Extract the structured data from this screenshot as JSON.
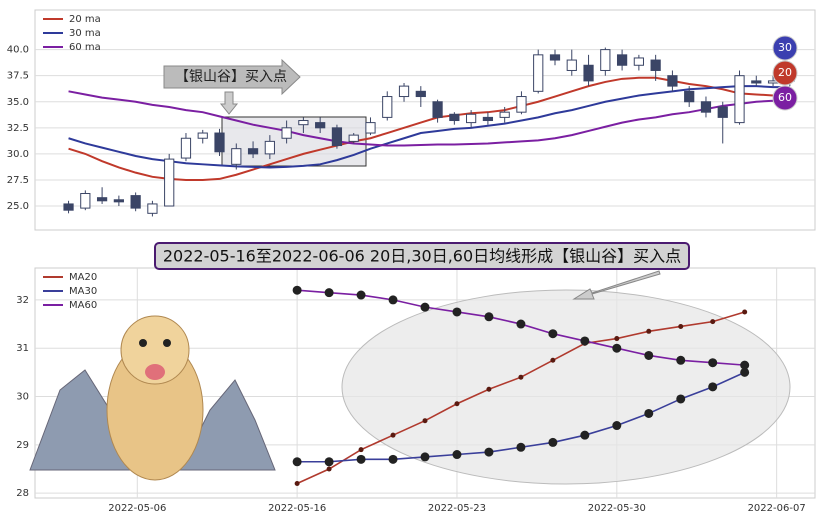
{
  "chart_data": [
    {
      "type": "candlestick",
      "ylim": [
        22.7,
        43.8
      ],
      "yticks": [
        {
          "value": 25,
          "label": "25.0"
        },
        {
          "value": 27.5,
          "label": "27.5"
        },
        {
          "value": 30,
          "label": "30.0"
        },
        {
          "value": 32.5,
          "label": "32.5"
        },
        {
          "value": 35,
          "label": "35.0"
        },
        {
          "value": 37.5,
          "label": "37.5"
        },
        {
          "value": 40,
          "label": "40.0"
        }
      ],
      "xlim": [
        -2,
        44.5
      ],
      "grid": true,
      "legend": "upper left",
      "up_color": "#ffffff",
      "down_color": "#3b4566",
      "candles": [
        [
          25.2,
          24.6,
          25.5,
          24.3
        ],
        [
          24.8,
          26.2,
          26.5,
          24.6
        ],
        [
          25.8,
          25.5,
          26.8,
          25.2
        ],
        [
          25.6,
          25.4,
          26,
          25
        ],
        [
          26,
          24.8,
          26.3,
          24.5
        ],
        [
          24.3,
          25.2,
          25.5,
          24
        ],
        [
          25,
          29.5,
          30,
          25
        ],
        [
          29.6,
          31.5,
          32,
          29.3
        ],
        [
          31.5,
          32,
          32.3,
          31
        ],
        [
          32,
          30.2,
          32.4,
          29.8
        ],
        [
          29,
          30.5,
          31,
          28.5
        ],
        [
          30.5,
          30,
          31.2,
          29.6
        ],
        [
          30,
          31.2,
          31.8,
          29.5
        ],
        [
          31.5,
          32.5,
          33.2,
          31
        ],
        [
          32.8,
          33.2,
          33.5,
          32
        ],
        [
          33,
          32.5,
          33.5,
          32
        ],
        [
          32.5,
          30.8,
          32.8,
          30.5
        ],
        [
          31.2,
          31.8,
          32,
          31
        ],
        [
          32,
          33,
          33.5,
          31.8
        ],
        [
          33.5,
          35.5,
          36,
          33.2
        ],
        [
          35.5,
          36.5,
          36.8,
          35
        ],
        [
          36,
          35.5,
          36.5,
          34.5
        ],
        [
          35,
          33.5,
          35.2,
          33
        ],
        [
          33.8,
          33.2,
          34,
          32.8
        ],
        [
          33,
          33.8,
          34.2,
          32.5
        ],
        [
          33.5,
          33.2,
          34,
          32.8
        ],
        [
          33.5,
          34,
          34.5,
          33
        ],
        [
          34,
          35.5,
          36,
          33.8
        ],
        [
          36,
          39.5,
          40,
          35.8
        ],
        [
          39.5,
          39,
          40,
          38.5
        ],
        [
          38,
          39,
          40,
          37.5
        ],
        [
          38.5,
          37,
          39.5,
          36.5
        ],
        [
          38,
          40,
          40.2,
          37.5
        ],
        [
          39.5,
          38.5,
          40,
          38
        ],
        [
          38.5,
          39.2,
          39.5,
          38
        ],
        [
          39,
          38,
          39.5,
          37
        ],
        [
          37.5,
          36.5,
          38,
          36
        ],
        [
          36,
          35,
          36.5,
          34.5
        ],
        [
          35,
          34,
          35.5,
          33.5
        ],
        [
          34.5,
          33.5,
          35,
          31
        ],
        [
          33,
          37.5,
          38,
          32.8
        ],
        [
          37,
          36.8,
          37.5,
          36.5
        ],
        [
          36.8,
          37,
          37.5,
          36.5
        ],
        [
          37,
          37.2,
          37.5,
          36.5
        ]
      ],
      "series": [
        {
          "name": "20 ma",
          "color": "#c0392b",
          "values": [
            30.5,
            30,
            29.3,
            28.7,
            28.2,
            27.8,
            27.6,
            27.5,
            27.5,
            27.6,
            28,
            28.5,
            29,
            29.5,
            30,
            30.4,
            30.8,
            31.2,
            31.5,
            32,
            32.5,
            33,
            33.5,
            33.7,
            33.9,
            34,
            34.2,
            34.6,
            35,
            35.5,
            36,
            36.5,
            36.9,
            37.2,
            37.3,
            37.3,
            37,
            36.7,
            36.5,
            36.2,
            35.8,
            35.7,
            35.6,
            35.6
          ]
        },
        {
          "name": "30 ma",
          "color": "#2e3a9a",
          "values": [
            31.5,
            31,
            30.6,
            30.2,
            29.8,
            29.5,
            29.3,
            29.1,
            29,
            28.9,
            28.8,
            28.75,
            28.7,
            28.75,
            28.85,
            29,
            29.4,
            29.9,
            30.5,
            31,
            31.5,
            32,
            32.2,
            32.4,
            32.5,
            32.7,
            32.9,
            33.2,
            33.5,
            33.9,
            34.2,
            34.6,
            35,
            35.3,
            35.6,
            35.8,
            36,
            36.2,
            36.3,
            36.4,
            36.5,
            36.5,
            36.4,
            36.4
          ]
        },
        {
          "name": "60 ma",
          "color": "#7b1fa2",
          "values": [
            36,
            35.7,
            35.4,
            35.2,
            35,
            34.7,
            34.5,
            34.2,
            34,
            33.6,
            33.2,
            32.8,
            32.5,
            32.2,
            31.8,
            31.5,
            31.2,
            31,
            30.9,
            30.8,
            30.8,
            30.85,
            30.9,
            30.9,
            30.95,
            31,
            31.1,
            31.2,
            31.3,
            31.5,
            31.8,
            32.2,
            32.6,
            33,
            33.3,
            33.5,
            33.8,
            34,
            34.3,
            34.6,
            34.8,
            35,
            35.1,
            35.2
          ]
        }
      ],
      "annotation": "【银山谷】买入点",
      "markers": [
        {
          "label": "30",
          "color": "#3b3fb0"
        },
        {
          "label": "20",
          "color": "#c0392b"
        },
        {
          "label": "60",
          "color": "#7b1fa2"
        }
      ]
    },
    {
      "type": "line",
      "title": "2022-05-16至2022-06-06 20日,30日,60日均线形成【银山谷】买入点",
      "x": [
        0,
        1,
        2,
        3,
        4,
        5,
        6,
        7,
        8,
        9,
        10,
        11,
        12,
        13,
        14
      ],
      "xlim": [
        -8.2,
        16.2
      ],
      "xticks": [
        {
          "value": -5,
          "label": "2022-05-06"
        },
        {
          "value": 0,
          "label": "2022-05-16"
        },
        {
          "value": 5,
          "label": "2022-05-23"
        },
        {
          "value": 10,
          "label": "2022-05-30"
        },
        {
          "value": 15,
          "label": "2022-06-07"
        }
      ],
      "ylim": [
        27.9,
        32.66
      ],
      "yticks": [
        28,
        29,
        30,
        31,
        32
      ],
      "grid": true,
      "legend": "upper left",
      "series": [
        {
          "name": "MA20",
          "color": "#b03a2e",
          "values": [
            28.2,
            28.5,
            28.9,
            29.2,
            29.5,
            29.85,
            30.15,
            30.4,
            30.75,
            31.1,
            31.2,
            31.35,
            31.45,
            31.55,
            31.75
          ]
        },
        {
          "name": "MA30",
          "color": "#3a3f9a",
          "values": [
            28.65,
            28.65,
            28.7,
            28.7,
            28.75,
            28.8,
            28.85,
            28.95,
            29.05,
            29.2,
            29.4,
            29.65,
            29.95,
            30.2,
            30.5
          ]
        },
        {
          "name": "MA60",
          "color": "#7a1fa2",
          "values": [
            32.2,
            32.15,
            32.1,
            32.0,
            31.85,
            31.75,
            31.65,
            31.5,
            31.3,
            31.15,
            31.0,
            30.85,
            30.75,
            30.7,
            30.65
          ]
        }
      ]
    }
  ]
}
